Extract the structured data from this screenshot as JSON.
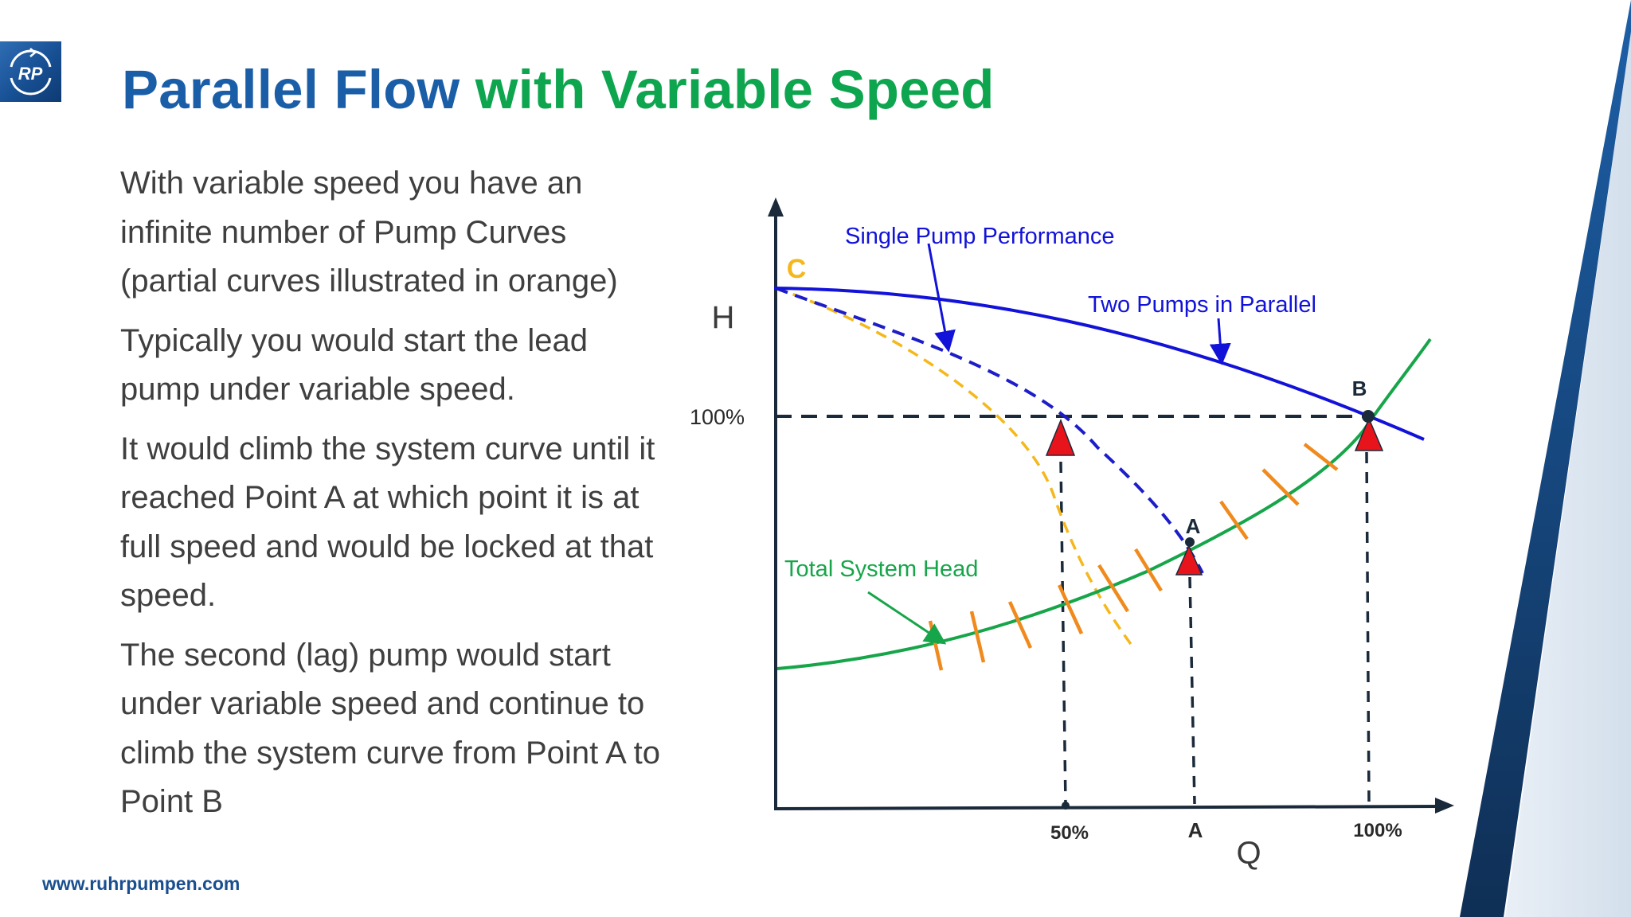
{
  "logo": {
    "text": "RP"
  },
  "title": {
    "part1": "Parallel Flow ",
    "part2": "with Variable Speed"
  },
  "paragraphs": [
    "With variable speed you have an infinite number of Pump Curves (partial curves illustrated in orange)",
    "Typically you would start the lead pump under variable speed.",
    "It would climb the system curve until it reached Point A at which point it is at full speed and would be locked at that speed.",
    "The second (lag) pump would start under variable speed and continue to climb the system curve from Point A to Point B"
  ],
  "footer": {
    "url": "www.ruhrpumpen.com"
  },
  "diagram": {
    "axis_y_label": "H",
    "axis_x_label": "Q",
    "y_tick_100": "100%",
    "x_tick_50": "50%",
    "x_tick_a": "A",
    "x_tick_100": "100%",
    "point_c": "C",
    "point_a": "A",
    "point_b": "B",
    "label_single_pump": "Single Pump Performance",
    "label_two_pumps": "Two Pumps in Parallel",
    "label_system_head": "Total System Head",
    "colors": {
      "two_pumps": "#1212d9",
      "single_pump": "#1d1dc9",
      "partial_curve": "#f5b81c",
      "system_head": "#17a54a",
      "speed_ticks": "#f08a1d",
      "markers": "#e8141c",
      "guides": "#1b2a3a",
      "point_c": "#f5b81c"
    }
  }
}
